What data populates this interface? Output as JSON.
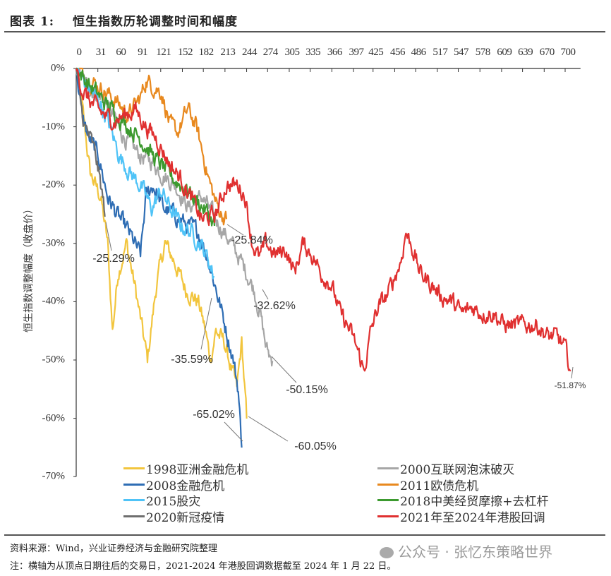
{
  "header": {
    "figure_no": "图表 1:",
    "title": "恒生指数历轮调整时间和幅度"
  },
  "chart_data": {
    "type": "line",
    "title": "恒生指数历轮调整时间和幅度",
    "xlabel": "",
    "ylabel": "恒生指数调整幅度（收盘价）",
    "x_ticks": [
      "0",
      "31",
      "60",
      "91",
      "121",
      "152",
      "182",
      "213",
      "244",
      "274",
      "305",
      "335",
      "366",
      "397",
      "425",
      "456",
      "486",
      "517",
      "547",
      "578",
      "609",
      "639",
      "670",
      "700"
    ],
    "y_ticks": [
      "0%",
      "-10%",
      "-20%",
      "-30%",
      "-40%",
      "-50%",
      "-60%",
      "-70%"
    ],
    "xlim": [
      0,
      720
    ],
    "ylim": [
      -70,
      0
    ],
    "legend_position": "bottom",
    "series": [
      {
        "name": "1998亚洲金融危机",
        "color": "#F2C53D",
        "points": [
          [
            0,
            0
          ],
          [
            10,
            -8
          ],
          [
            20,
            -18
          ],
          [
            35,
            -22
          ],
          [
            45,
            -30
          ],
          [
            52,
            -45
          ],
          [
            60,
            -35
          ],
          [
            72,
            -30
          ],
          [
            85,
            -38
          ],
          [
            102,
            -50
          ],
          [
            115,
            -37
          ],
          [
            127,
            -30
          ],
          [
            140,
            -33
          ],
          [
            157,
            -38
          ],
          [
            175,
            -40
          ],
          [
            185,
            -45
          ],
          [
            192,
            -50
          ],
          [
            200,
            -45
          ],
          [
            212,
            -47
          ],
          [
            230,
            -55
          ],
          [
            237,
            -47
          ],
          [
            244,
            -60.05
          ]
        ]
      },
      {
        "name": "2000互联网泡沫破灭",
        "color": "#A6A6A6",
        "points": [
          [
            0,
            0
          ],
          [
            15,
            -3
          ],
          [
            27,
            -4
          ],
          [
            38,
            -5
          ],
          [
            52,
            -8
          ],
          [
            70,
            -12
          ],
          [
            92,
            -15
          ],
          [
            110,
            -16
          ],
          [
            122,
            -18
          ],
          [
            142,
            -20
          ],
          [
            162,
            -24
          ],
          [
            180,
            -22
          ],
          [
            195,
            -25
          ],
          [
            222,
            -30
          ],
          [
            240,
            -34
          ],
          [
            255,
            -38
          ],
          [
            265,
            -43
          ],
          [
            272,
            -48
          ],
          [
            281,
            -50.15
          ]
        ]
      },
      {
        "name": "2008金融危机",
        "color": "#2E6DB4",
        "points": [
          [
            0,
            0
          ],
          [
            8,
            -8
          ],
          [
            18,
            -12
          ],
          [
            32,
            -15
          ],
          [
            45,
            -22
          ],
          [
            58,
            -25
          ],
          [
            75,
            -28
          ],
          [
            92,
            -32
          ],
          [
            100,
            -22
          ],
          [
            110,
            -20
          ],
          [
            125,
            -24
          ],
          [
            140,
            -25
          ],
          [
            160,
            -27
          ],
          [
            175,
            -28
          ],
          [
            190,
            -33
          ],
          [
            205,
            -40
          ],
          [
            215,
            -45
          ],
          [
            225,
            -50
          ],
          [
            232,
            -55
          ],
          [
            237,
            -65.02
          ]
        ]
      },
      {
        "name": "2011欧债危机",
        "color": "#E8891F",
        "points": [
          [
            0,
            0
          ],
          [
            20,
            -2
          ],
          [
            42,
            -4
          ],
          [
            60,
            -6
          ],
          [
            75,
            -8
          ],
          [
            92,
            -5
          ],
          [
            100,
            -2
          ],
          [
            110,
            -3
          ],
          [
            122,
            -4
          ],
          [
            135,
            -10
          ],
          [
            145,
            -11
          ],
          [
            160,
            -7
          ],
          [
            172,
            -10
          ],
          [
            182,
            -15
          ],
          [
            192,
            -20
          ],
          [
            200,
            -23
          ],
          [
            208,
            -25
          ],
          [
            215,
            -25.84
          ]
        ]
      },
      {
        "name": "2015股灾",
        "color": "#4FC3F7",
        "points": [
          [
            0,
            0
          ],
          [
            10,
            -2
          ],
          [
            22,
            -4
          ],
          [
            35,
            -6
          ],
          [
            48,
            -10
          ],
          [
            62,
            -15
          ],
          [
            78,
            -18
          ],
          [
            92,
            -20
          ],
          [
            108,
            -24
          ],
          [
            122,
            -21
          ],
          [
            135,
            -24
          ],
          [
            150,
            -27
          ],
          [
            165,
            -28
          ],
          [
            178,
            -30
          ],
          [
            190,
            -33
          ],
          [
            197,
            -35.59
          ]
        ]
      },
      {
        "name": "2018中美经贸摩擦+去杠杆",
        "color": "#3C9A2F",
        "points": [
          [
            0,
            0
          ],
          [
            20,
            -3
          ],
          [
            42,
            -6
          ],
          [
            60,
            -8
          ],
          [
            75,
            -10
          ],
          [
            92,
            -12
          ],
          [
            110,
            -15
          ],
          [
            125,
            -17
          ],
          [
            140,
            -19
          ],
          [
            160,
            -21
          ],
          [
            175,
            -23
          ],
          [
            190,
            -25
          ],
          [
            198,
            -27
          ]
        ]
      },
      {
        "name": "2020新冠疫情",
        "color": "#6E6E6E",
        "points": [
          [
            0,
            0
          ],
          [
            5,
            -5
          ],
          [
            12,
            -10
          ],
          [
            20,
            -12
          ],
          [
            28,
            -15
          ],
          [
            35,
            -20
          ],
          [
            42,
            -25.29
          ]
        ]
      },
      {
        "name": "2021年至2024年港股回调",
        "color": "#E03030",
        "points": [
          [
            0,
            0
          ],
          [
            10,
            -4
          ],
          [
            22,
            -6
          ],
          [
            40,
            -8
          ],
          [
            55,
            -9
          ],
          [
            70,
            -8
          ],
          [
            85,
            -7
          ],
          [
            100,
            -10
          ],
          [
            115,
            -12
          ],
          [
            132,
            -16
          ],
          [
            150,
            -19
          ],
          [
            168,
            -23
          ],
          [
            180,
            -26
          ],
          [
            200,
            -25
          ],
          [
            215,
            -20
          ],
          [
            232,
            -20
          ],
          [
            242,
            -22
          ],
          [
            252,
            -30
          ],
          [
            262,
            -32.62
          ],
          [
            272,
            -30
          ],
          [
            285,
            -32
          ],
          [
            300,
            -31
          ],
          [
            312,
            -35
          ],
          [
            325,
            -30
          ],
          [
            338,
            -32
          ],
          [
            350,
            -35
          ],
          [
            365,
            -37
          ],
          [
            378,
            -42
          ],
          [
            392,
            -45
          ],
          [
            402,
            -48
          ],
          [
            412,
            -52
          ],
          [
            422,
            -45
          ],
          [
            432,
            -41
          ],
          [
            445,
            -39
          ],
          [
            455,
            -36
          ],
          [
            465,
            -33
          ],
          [
            472,
            -28
          ],
          [
            482,
            -31
          ],
          [
            492,
            -35
          ],
          [
            508,
            -37
          ],
          [
            522,
            -39
          ],
          [
            538,
            -40
          ],
          [
            552,
            -42
          ],
          [
            568,
            -41
          ],
          [
            582,
            -42
          ],
          [
            598,
            -42
          ],
          [
            612,
            -44
          ],
          [
            628,
            -44
          ],
          [
            645,
            -44
          ],
          [
            660,
            -44
          ],
          [
            675,
            -46
          ],
          [
            688,
            -46
          ],
          [
            700,
            -48
          ],
          [
            708,
            -51.87
          ]
        ]
      }
    ],
    "annotations": [
      {
        "text": "-25.29%",
        "series": "2020新冠疫情"
      },
      {
        "text": "-25.84%",
        "series": "2011欧债危机"
      },
      {
        "text": "-32.62%",
        "series": "2021年至2024年港股回调"
      },
      {
        "text": "-35.59%",
        "series": "2015股灾"
      },
      {
        "text": "-50.15%",
        "series": "2000互联网泡沫破灭"
      },
      {
        "text": "-65.02%",
        "series": "2008金融危机"
      },
      {
        "text": "-60.05%",
        "series": "1998亚洲金融危机"
      },
      {
        "text": "-51.87%",
        "series": "2021年至2024年港股回调"
      }
    ]
  },
  "footer": {
    "source": "资料来源：Wind，兴业证券经济与金融研究院整理",
    "note": "注：横轴为从顶点日期往后的交易日，2021-2024 年港股回调数据截至 2024 年 1 月 22 日。",
    "watermark": "公众号 · 张忆东策略世界"
  }
}
